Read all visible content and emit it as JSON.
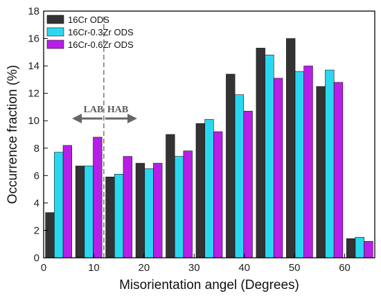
{
  "chart_data": {
    "type": "bar",
    "xlabel": "Misorientation angel (Degrees)",
    "ylabel": "Occurrence fraction (%)",
    "xlim": [
      0,
      66
    ],
    "ylim": [
      0,
      18
    ],
    "xticks": [
      0,
      10,
      20,
      30,
      40,
      50,
      60
    ],
    "yticks": [
      0,
      2,
      4,
      6,
      8,
      10,
      12,
      14,
      16,
      18
    ],
    "bin_centers": [
      3,
      9,
      15,
      21,
      27,
      33,
      39,
      45,
      51,
      57,
      63
    ],
    "series": [
      {
        "name": "16Cr ODS",
        "color": "#333333",
        "values": [
          3.3,
          6.7,
          5.9,
          6.9,
          9.0,
          9.8,
          13.4,
          15.3,
          16.0,
          12.5,
          1.4
        ]
      },
      {
        "name": "16Cr-0.3Zr ODS",
        "color": "#29d8f0",
        "values": [
          7.7,
          6.7,
          6.1,
          6.5,
          7.4,
          10.1,
          11.9,
          14.8,
          13.6,
          13.7,
          1.5
        ]
      },
      {
        "name": "16Cr-0.6Zr ODS",
        "color": "#b81ee8",
        "values": [
          8.2,
          8.8,
          7.4,
          6.9,
          7.8,
          9.2,
          10.7,
          13.1,
          14.0,
          12.8,
          1.2
        ]
      }
    ],
    "annotations": {
      "boundary_x": 12,
      "left_label": "LAB",
      "right_label": "HAB"
    },
    "legend_position": "top-left",
    "grid": false
  }
}
